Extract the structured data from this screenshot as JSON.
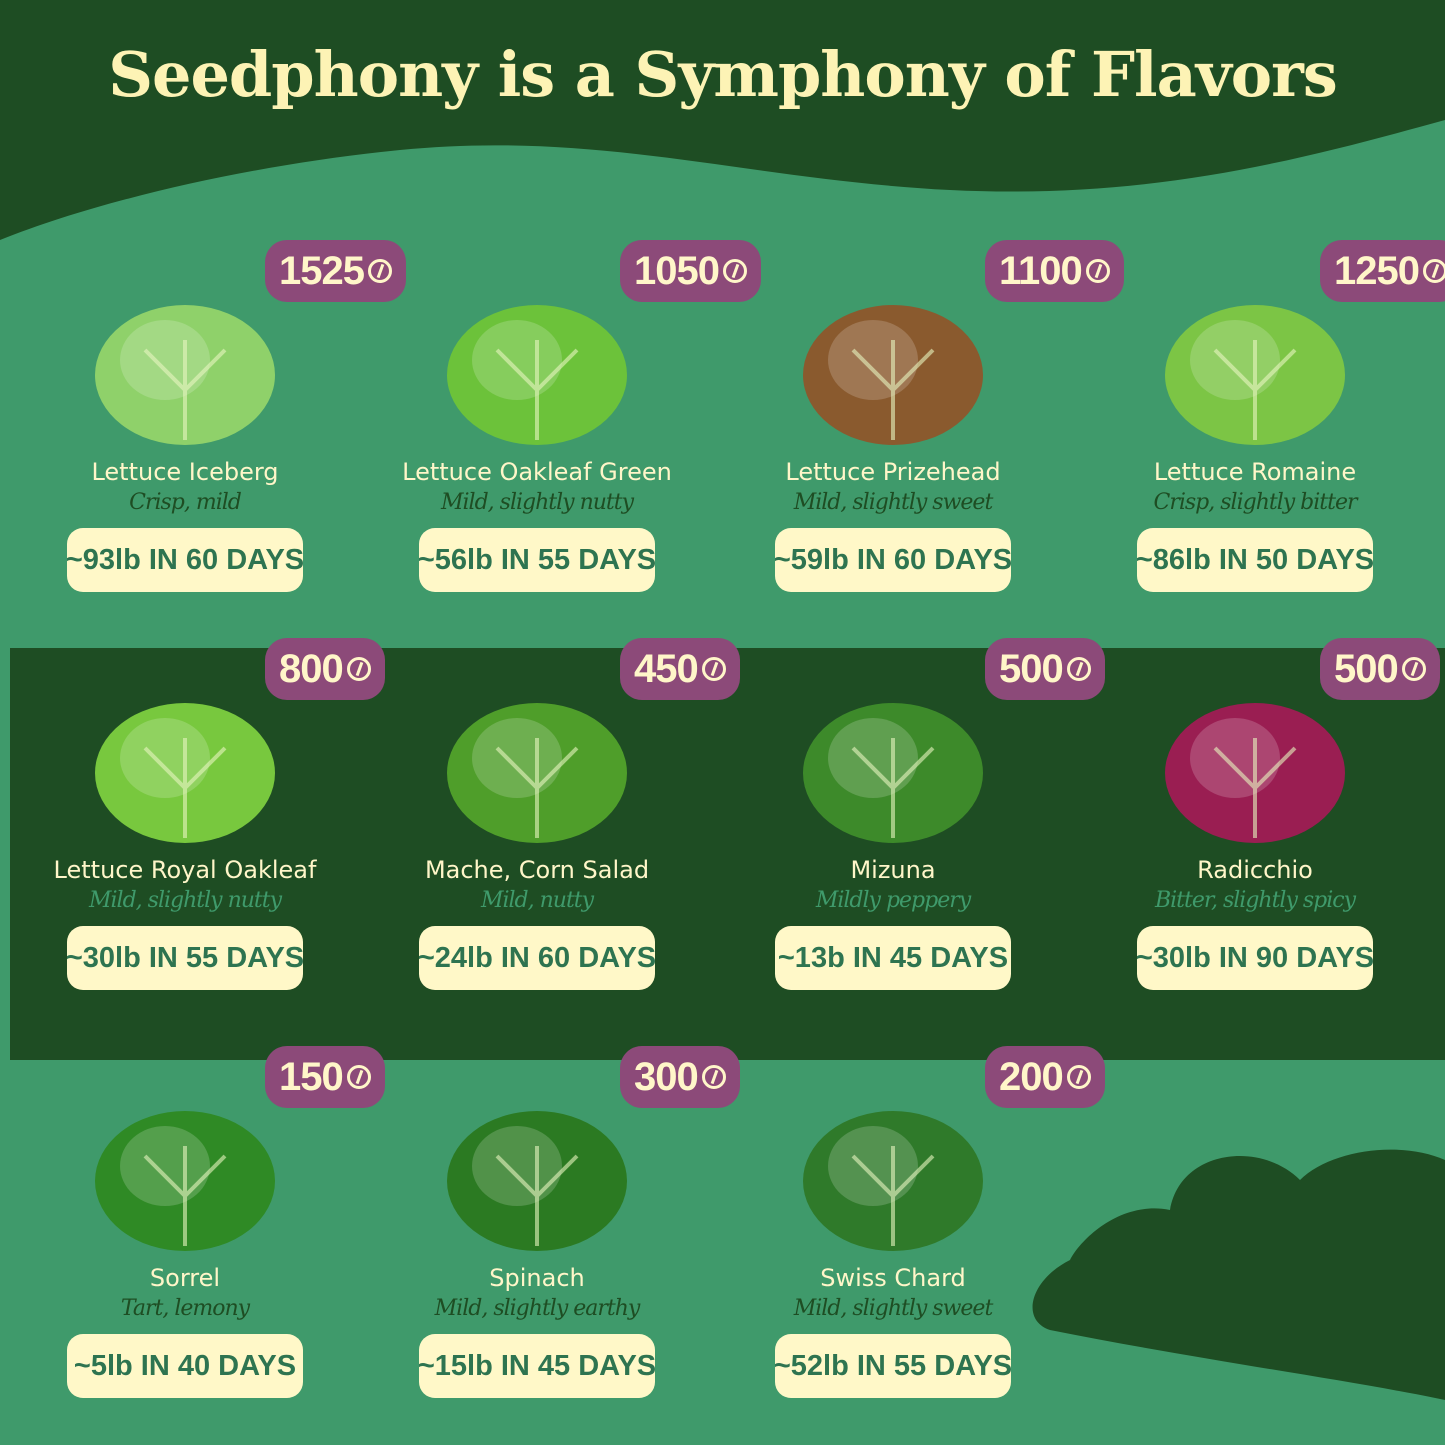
{
  "title": "Seedphony is a Symphony of Flavors",
  "colors": {
    "background": "#3f9a6b",
    "dark_band": "#1e4d23",
    "badge": "#8c4a79",
    "pill": "#fff8c8",
    "title": "#fdf3b5"
  },
  "items": [
    {
      "name": "Lettuce Iceberg",
      "desc": "Crisp, mild",
      "seeds": "1525",
      "yield": "~93lb IN 60 DAYS",
      "color": "#8fd16a"
    },
    {
      "name": "Lettuce Oakleaf Green",
      "desc": "Mild, slightly nutty",
      "seeds": "1050",
      "yield": "~56lb IN 55 DAYS",
      "color": "#6cc23a"
    },
    {
      "name": "Lettuce Prizehead",
      "desc": "Mild, slightly sweet",
      "seeds": "1100",
      "yield": "~59lb IN 60 DAYS",
      "color": "#8a5a2e"
    },
    {
      "name": "Lettuce Romaine",
      "desc": "Crisp, slightly bitter",
      "seeds": "1250",
      "yield": "~86lb IN 50 DAYS",
      "color": "#7cc545"
    },
    {
      "name": "Lettuce Royal Oakleaf",
      "desc": "Mild, slightly nutty",
      "seeds": "800",
      "yield": "~30lb IN 55 DAYS",
      "color": "#78c83e"
    },
    {
      "name": "Mache, Corn Salad",
      "desc": "Mild, nutty",
      "seeds": "450",
      "yield": "~24lb IN 60 DAYS",
      "color": "#4f9e2a"
    },
    {
      "name": "Mizuna",
      "desc": "Mildly peppery",
      "seeds": "500",
      "yield": "~13b IN 45 DAYS",
      "color": "#3d8a2a"
    },
    {
      "name": "Radicchio",
      "desc": "Bitter, slightly spicy",
      "seeds": "500",
      "yield": "~30lb IN 90 DAYS",
      "color": "#9a1e52"
    },
    {
      "name": "Sorrel",
      "desc": "Tart, lemony",
      "seeds": "150",
      "yield": "~5lb IN 40 DAYS",
      "color": "#2f8a25"
    },
    {
      "name": "Spinach",
      "desc": "Mild, slightly earthy",
      "seeds": "300",
      "yield": "~15lb IN 45 DAYS",
      "color": "#2b7a22"
    },
    {
      "name": "Swiss Chard",
      "desc": "Mild, slightly sweet",
      "seeds": "200",
      "yield": "~52lb IN 55 DAYS",
      "color": "#2f7a2a"
    }
  ]
}
